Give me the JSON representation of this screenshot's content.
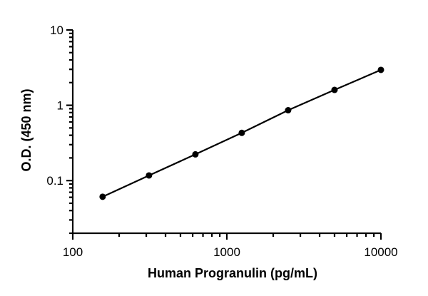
{
  "chart_data": {
    "type": "line",
    "title": "",
    "xlabel": "Human Progranulin (pg/mL)",
    "ylabel": "O.D. (450 nm)",
    "x_scale": "log",
    "y_scale": "log",
    "xlim": [
      100,
      10000
    ],
    "ylim": [
      0.02,
      10
    ],
    "x_ticks": [
      {
        "value": 100,
        "label": "100"
      },
      {
        "value": 1000,
        "label": "1000"
      },
      {
        "value": 10000,
        "label": "10000"
      }
    ],
    "y_ticks": [
      {
        "value": 0.1,
        "label": "0.1"
      },
      {
        "value": 1,
        "label": "1"
      },
      {
        "value": 10,
        "label": "10"
      }
    ],
    "grid": false,
    "legend": "none",
    "series": [
      {
        "color": "#000000",
        "marker": "circle",
        "x": [
          156.25,
          312.5,
          625,
          1250,
          2500,
          5000,
          10000
        ],
        "y": [
          0.061,
          0.117,
          0.223,
          0.43,
          0.86,
          1.6,
          2.95
        ]
      }
    ]
  }
}
